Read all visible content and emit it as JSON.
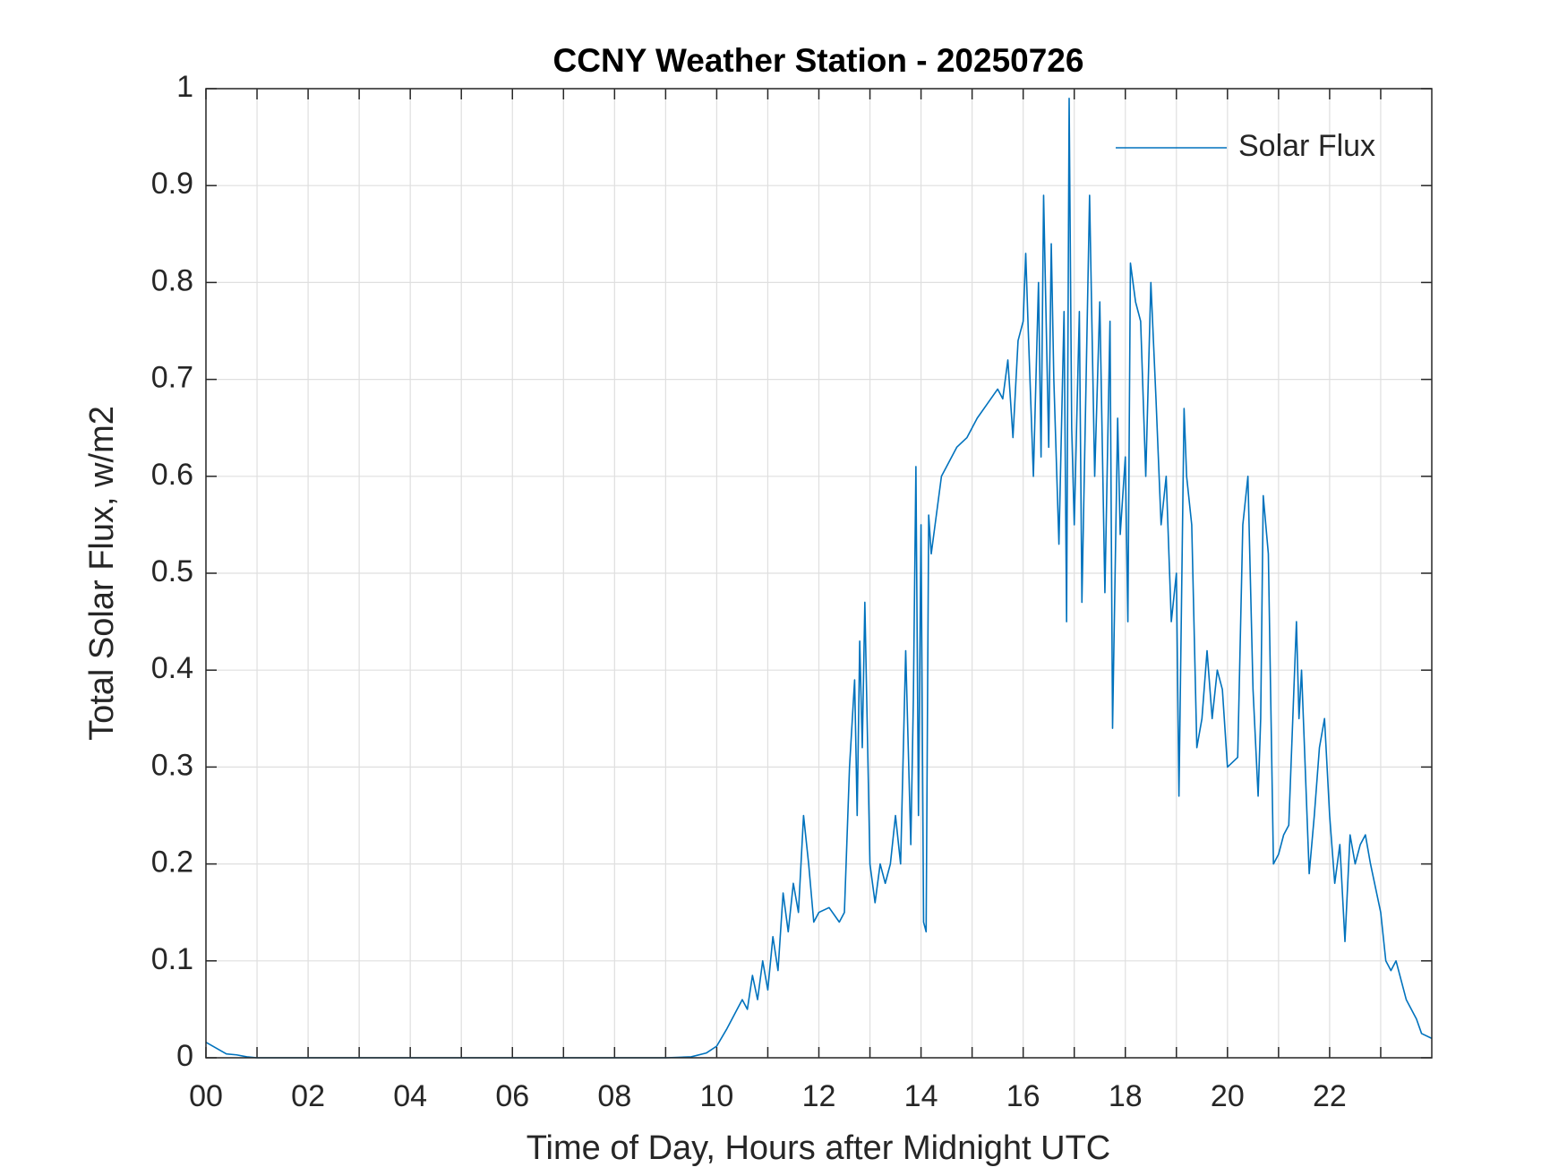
{
  "chart_data": {
    "type": "line",
    "title": "CCNY Weather Station - 20250726",
    "x_label": "Time of Day, Hours after Midnight UTC",
    "y_label": "Total Solar Flux, w/m2",
    "x": [
      0,
      0.2,
      0.4,
      0.6,
      0.8,
      1,
      2,
      3,
      4,
      5,
      6,
      7,
      8,
      9,
      9.5,
      9.8,
      10,
      10.2,
      10.4,
      10.5,
      10.6,
      10.7,
      10.8,
      10.9,
      11,
      11.1,
      11.2,
      11.3,
      11.4,
      11.5,
      11.6,
      11.7,
      11.8,
      11.9,
      12,
      12.2,
      12.4,
      12.5,
      12.6,
      12.7,
      12.75,
      12.8,
      12.85,
      12.9,
      13,
      13.1,
      13.2,
      13.3,
      13.4,
      13.5,
      13.6,
      13.7,
      13.8,
      13.85,
      13.9,
      13.95,
      14,
      14.05,
      14.1,
      14.15,
      14.2,
      14.3,
      14.4,
      14.5,
      14.7,
      14.9,
      15.1,
      15.3,
      15.5,
      15.6,
      15.7,
      15.8,
      15.9,
      16,
      16.05,
      16.1,
      16.2,
      16.3,
      16.35,
      16.4,
      16.5,
      16.55,
      16.6,
      16.7,
      16.8,
      16.85,
      16.9,
      16.95,
      17,
      17.1,
      17.15,
      17.3,
      17.4,
      17.5,
      17.6,
      17.7,
      17.75,
      17.85,
      17.9,
      18,
      18.05,
      18.1,
      18.2,
      18.3,
      18.4,
      18.5,
      18.6,
      18.7,
      18.8,
      18.9,
      19,
      19.05,
      19.15,
      19.2,
      19.3,
      19.4,
      19.5,
      19.6,
      19.7,
      19.8,
      19.9,
      20,
      20.2,
      20.3,
      20.4,
      20.5,
      20.6,
      20.65,
      20.7,
      20.8,
      20.9,
      21,
      21.1,
      21.2,
      21.3,
      21.35,
      21.4,
      21.45,
      21.5,
      21.6,
      21.7,
      21.8,
      21.9,
      22,
      22.1,
      22.2,
      22.3,
      22.4,
      22.5,
      22.6,
      22.7,
      22.8,
      23,
      23.1,
      23.2,
      23.3,
      23.4,
      23.5,
      23.7,
      23.8,
      24
    ],
    "series": [
      {
        "name": "Solar Flux",
        "color": "#0072bd",
        "values": [
          0.016,
          0.01,
          0.004,
          0.003,
          0.001,
          0,
          0,
          0,
          0,
          0,
          0,
          0,
          0,
          0,
          0.001,
          0.005,
          0.012,
          0.03,
          0.05,
          0.06,
          0.05,
          0.085,
          0.06,
          0.1,
          0.07,
          0.125,
          0.09,
          0.17,
          0.13,
          0.18,
          0.15,
          0.25,
          0.2,
          0.14,
          0.15,
          0.155,
          0.14,
          0.15,
          0.3,
          0.39,
          0.25,
          0.43,
          0.32,
          0.47,
          0.2,
          0.16,
          0.2,
          0.18,
          0.2,
          0.25,
          0.2,
          0.42,
          0.22,
          0.37,
          0.61,
          0.25,
          0.55,
          0.14,
          0.13,
          0.56,
          0.52,
          0.56,
          0.6,
          0.61,
          0.63,
          0.64,
          0.66,
          0.675,
          0.69,
          0.68,
          0.72,
          0.64,
          0.74,
          0.76,
          0.83,
          0.75,
          0.6,
          0.8,
          0.62,
          0.89,
          0.63,
          0.84,
          0.7,
          0.53,
          0.77,
          0.45,
          0.99,
          0.65,
          0.55,
          0.77,
          0.47,
          0.89,
          0.6,
          0.78,
          0.48,
          0.76,
          0.34,
          0.66,
          0.54,
          0.62,
          0.45,
          0.82,
          0.78,
          0.76,
          0.6,
          0.8,
          0.68,
          0.55,
          0.6,
          0.45,
          0.5,
          0.27,
          0.67,
          0.6,
          0.55,
          0.32,
          0.35,
          0.42,
          0.35,
          0.4,
          0.38,
          0.3,
          0.31,
          0.55,
          0.6,
          0.38,
          0.27,
          0.35,
          0.58,
          0.52,
          0.2,
          0.21,
          0.23,
          0.24,
          0.38,
          0.45,
          0.35,
          0.4,
          0.33,
          0.19,
          0.25,
          0.32,
          0.35,
          0.25,
          0.18,
          0.22,
          0.12,
          0.23,
          0.2,
          0.22,
          0.23,
          0.2,
          0.15,
          0.1,
          0.09,
          0.1,
          0.08,
          0.06,
          0.04,
          0.025,
          0.02
        ]
      }
    ],
    "xlim": [
      0,
      24
    ],
    "xticks": [
      {
        "value": 0,
        "label": "00"
      },
      {
        "value": 2,
        "label": "02"
      },
      {
        "value": 4,
        "label": "04"
      },
      {
        "value": 6,
        "label": "06"
      },
      {
        "value": 8,
        "label": "08"
      },
      10,
      12,
      14,
      16,
      18,
      20,
      22
    ],
    "xminorticks": [
      1,
      3,
      5,
      7,
      9,
      11,
      13,
      15,
      17,
      19,
      21,
      23
    ],
    "ylim": [
      0,
      1
    ],
    "yticks": [
      0,
      0.1,
      0.2,
      0.3,
      0.4,
      0.5,
      0.6,
      0.7,
      0.8,
      0.9,
      1
    ],
    "grid": true,
    "legend": "upper-right"
  }
}
